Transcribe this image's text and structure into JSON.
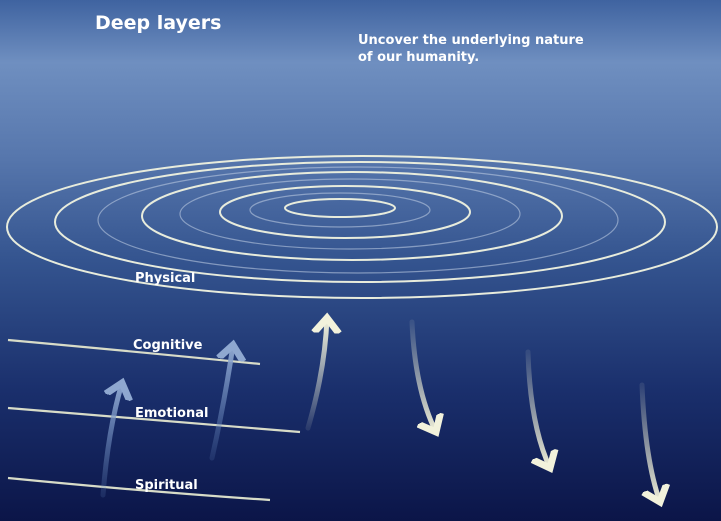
{
  "title": "Deep layers",
  "subtitle": [
    "Uncover the underlying nature",
    "of our humanity."
  ],
  "layers": [
    "Physical",
    "Cognitive",
    "Emotional",
    "Spiritual"
  ]
}
